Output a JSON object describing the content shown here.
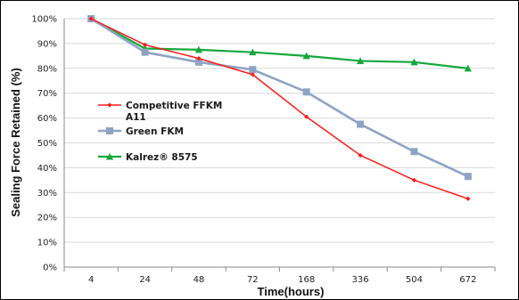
{
  "chart_data": {
    "type": "line",
    "title": "",
    "xlabel": "Time(hours)",
    "ylabel": "Sealing Force Retained (%)",
    "categories": [
      "4",
      "24",
      "48",
      "72",
      "168",
      "336",
      "504",
      "672"
    ],
    "ylim": [
      0,
      100
    ],
    "yticks": [
      "0%",
      "10%",
      "20%",
      "30%",
      "40%",
      "50%",
      "60%",
      "70%",
      "80%",
      "90%",
      "100%"
    ],
    "grid": "horizontal",
    "legend_position": "left-middle",
    "series": [
      {
        "name": "Competitive FFKM A11",
        "legend_lines": [
          "Competitive FFKM",
          "A11"
        ],
        "color": "#ff1a1a",
        "marker": "diamond",
        "values": [
          100,
          89.5,
          84,
          77.5,
          60.5,
          45,
          35,
          27.5
        ]
      },
      {
        "name": "Green FKM",
        "legend_lines": [
          "Green FKM"
        ],
        "color": "#8ea3c4",
        "marker": "square",
        "values": [
          100,
          86.5,
          82.5,
          79.5,
          70.5,
          57.5,
          46.5,
          36.5
        ]
      },
      {
        "name": "Kalrez® 8575",
        "legend_lines": [
          "Kalrez® 8575"
        ],
        "color": "#14a83b",
        "marker": "triangle",
        "values": [
          100,
          88,
          87.5,
          86.5,
          85,
          83,
          82.5,
          80
        ]
      }
    ]
  }
}
